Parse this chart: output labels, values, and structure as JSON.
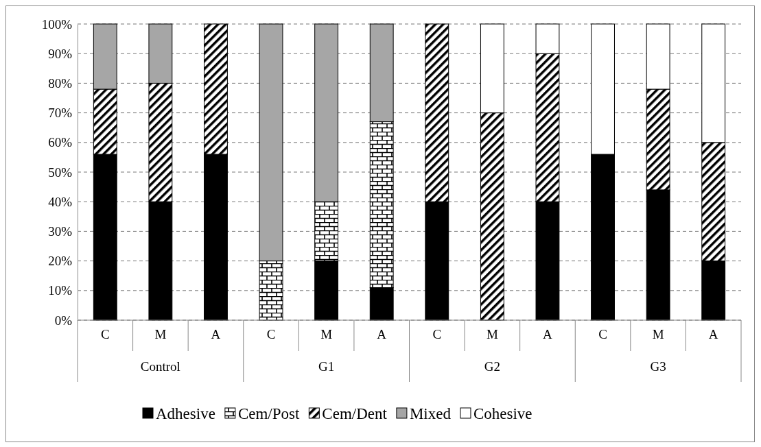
{
  "chart_data": {
    "type": "bar",
    "stacked": true,
    "categories": [
      "C",
      "M",
      "A",
      "C",
      "M",
      "A",
      "C",
      "M",
      "A",
      "C",
      "M",
      "A"
    ],
    "annotations": [
      "Control",
      "G1",
      "G2",
      "G3"
    ],
    "series": [
      {
        "name": "Adhesive",
        "color": "#000000",
        "values": [
          56,
          40,
          56,
          0,
          20,
          11,
          40,
          0,
          40,
          56,
          44,
          20
        ]
      },
      {
        "name": "Cem/Post",
        "color": "#000000",
        "values": [
          0,
          0,
          0,
          20,
          20,
          56,
          0,
          0,
          0,
          0,
          0,
          0
        ]
      },
      {
        "name": "Cem/Dent",
        "color": "#000000",
        "values": [
          22,
          40,
          44,
          0,
          0,
          0,
          60,
          70,
          50,
          0,
          34,
          40
        ]
      },
      {
        "name": "Mixed",
        "color": "#a6a6a6",
        "values": [
          22,
          20,
          0,
          80,
          60,
          33,
          0,
          0,
          0,
          0,
          0,
          0
        ]
      },
      {
        "name": "Cohesive",
        "color": "#ffffff",
        "values": [
          0,
          0,
          0,
          0,
          0,
          0,
          0,
          30,
          10,
          44,
          22,
          40
        ]
      }
    ],
    "ylim": [
      0,
      100
    ],
    "yticks": [
      {
        "value": 0,
        "label": "0%"
      },
      {
        "value": 10,
        "label": "10%"
      },
      {
        "value": 20,
        "label": "20%"
      },
      {
        "value": 30,
        "label": "30%"
      },
      {
        "value": 40,
        "label": "40%"
      },
      {
        "value": 50,
        "label": "50%"
      },
      {
        "value": 60,
        "label": "60%"
      },
      {
        "value": 70,
        "label": "70%"
      },
      {
        "value": 80,
        "label": "80%"
      },
      {
        "value": 90,
        "label": "90%"
      },
      {
        "value": 100,
        "label": "100%"
      }
    ],
    "grid": "y",
    "legend": "bottom"
  }
}
